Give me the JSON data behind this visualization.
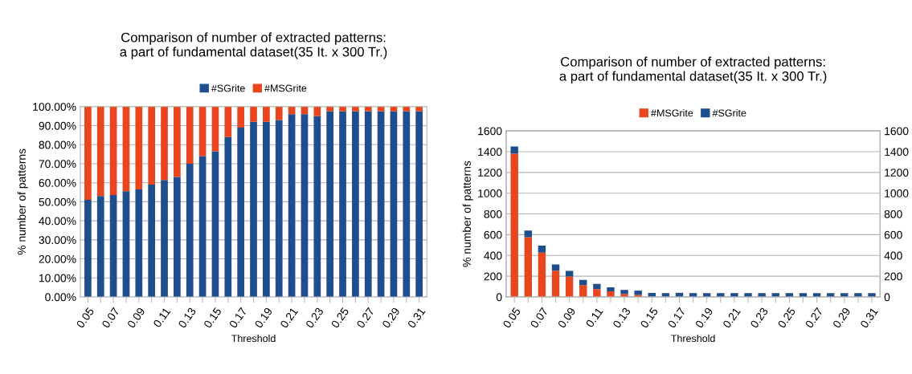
{
  "chart_data": [
    {
      "type": "bar",
      "title": "Comparison of number of extracted patterns:\na part of fundamental dataset(35 It. x 300 Tr.)",
      "xlabel": "Threshold",
      "ylabel": "% number of patterns",
      "categories": [
        "0.05",
        null,
        "0.07",
        null,
        "0.09",
        null,
        "0.11",
        null,
        "0.13",
        null,
        "0.15",
        null,
        "0.17",
        null,
        "0.19",
        null,
        "0.21",
        null,
        "0.23",
        null,
        "0.25",
        null,
        "0.27",
        null,
        "0.29",
        null,
        "0.31"
      ],
      "stacked": true,
      "legend": "top",
      "grid": "y",
      "series": [
        {
          "name": "#SGrite",
          "color": "#1f4e8c",
          "values": [
            51,
            53,
            53.5,
            55.5,
            56.5,
            59,
            61.5,
            63,
            70,
            74,
            76.5,
            84,
            89,
            92,
            92,
            93,
            96,
            96,
            95,
            97.5,
            97.5,
            97.5,
            97.5,
            97.5,
            97.5,
            97.5,
            97.5
          ]
        },
        {
          "name": "#MSGrite",
          "color": "#e8461e",
          "values": [
            49,
            47,
            46.5,
            44.5,
            43.5,
            41,
            38.5,
            37,
            30,
            26,
            23.5,
            16,
            11,
            8,
            8,
            7,
            4,
            4,
            5,
            2.5,
            2.5,
            2.5,
            2.5,
            2.5,
            2.5,
            2.5,
            2.5
          ]
        }
      ],
      "ylim": [
        0,
        100
      ],
      "yticks": [
        {
          "value": 0,
          "label": "0.00%"
        },
        {
          "value": 10,
          "label": "10.00%"
        },
        {
          "value": 20,
          "label": "20.00%"
        },
        {
          "value": 30,
          "label": "30.00%"
        },
        {
          "value": 40,
          "label": "40.00%"
        },
        {
          "value": 50,
          "label": "50.00%"
        },
        {
          "value": 60,
          "label": "60.00%"
        },
        {
          "value": 70,
          "label": "70.00%"
        },
        {
          "value": 80,
          "label": "80.00%"
        },
        {
          "value": 90,
          "label": "90.00%"
        },
        {
          "value": 100,
          "label": "100.00%"
        }
      ]
    },
    {
      "type": "bar",
      "title": "Comparison of number of extracted patterns:\na part of fundamental dataset(35 It. x 300 Tr.)",
      "xlabel": "Threshold",
      "ylabel": "% number of patterns",
      "categories": [
        "0.05",
        null,
        "0.07",
        null,
        "0.09",
        null,
        "0.11",
        null,
        "0.13",
        null,
        "0.15",
        null,
        "0.17",
        null,
        "0.19",
        null,
        "0.21",
        null,
        "0.23",
        null,
        "0.25",
        null,
        "0.27",
        null,
        "0.29",
        null,
        "0.31"
      ],
      "stacked": true,
      "legend": "top",
      "grid": "y",
      "series": [
        {
          "name": "#MSGrite",
          "color": "#e8461e",
          "values": [
            1380,
            577,
            428,
            254,
            198,
            115,
            76,
            54,
            29,
            20,
            null,
            null,
            null,
            0,
            0,
            0,
            0,
            0,
            0,
            0,
            0,
            0,
            0,
            0,
            0,
            0,
            0
          ]
        },
        {
          "name": "#SGrite",
          "color": "#1f4e8c",
          "values": [
            70,
            63,
            66,
            59,
            54,
            49,
            49,
            39,
            39,
            41,
            39,
            37,
            40,
            37,
            37,
            37,
            37,
            37,
            37,
            37,
            37,
            37,
            37,
            37,
            37,
            37,
            37
          ]
        }
      ],
      "ylim": [
        0,
        1600
      ],
      "yticks": [
        0,
        200,
        400,
        600,
        800,
        1000,
        1200,
        1400,
        1600
      ],
      "y2lim": [
        0,
        1600
      ],
      "y2ticks": [
        0,
        200,
        400,
        600,
        800,
        1000,
        1200,
        1400,
        1600
      ]
    }
  ]
}
